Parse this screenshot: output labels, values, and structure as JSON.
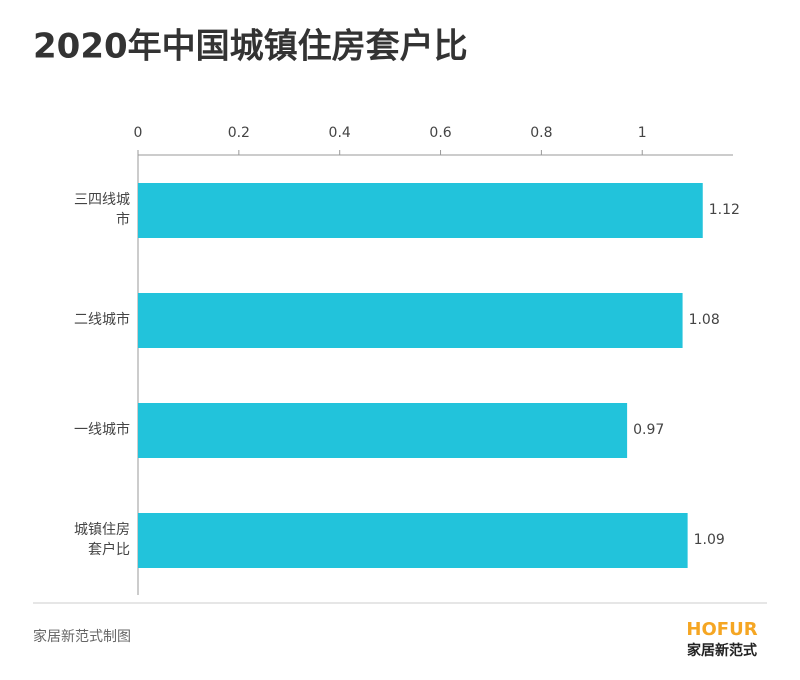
{
  "chart_data": {
    "type": "bar",
    "orientation": "horizontal",
    "title": "2020年中国城镇住房套户比",
    "categories": [
      "三四线城市",
      "二线城市",
      "一线城市",
      "城镇住房套户比"
    ],
    "values": [
      1.12,
      1.08,
      0.97,
      1.09
    ],
    "color": "#22c3db",
    "xlim": [
      0,
      1.18
    ],
    "xticks": [
      0,
      0.2,
      0.4,
      0.6,
      0.8,
      1
    ]
  },
  "footer": {
    "source": "家居新范式制图",
    "logo_top": "HOFUR",
    "logo_bottom": "家居新范式"
  }
}
